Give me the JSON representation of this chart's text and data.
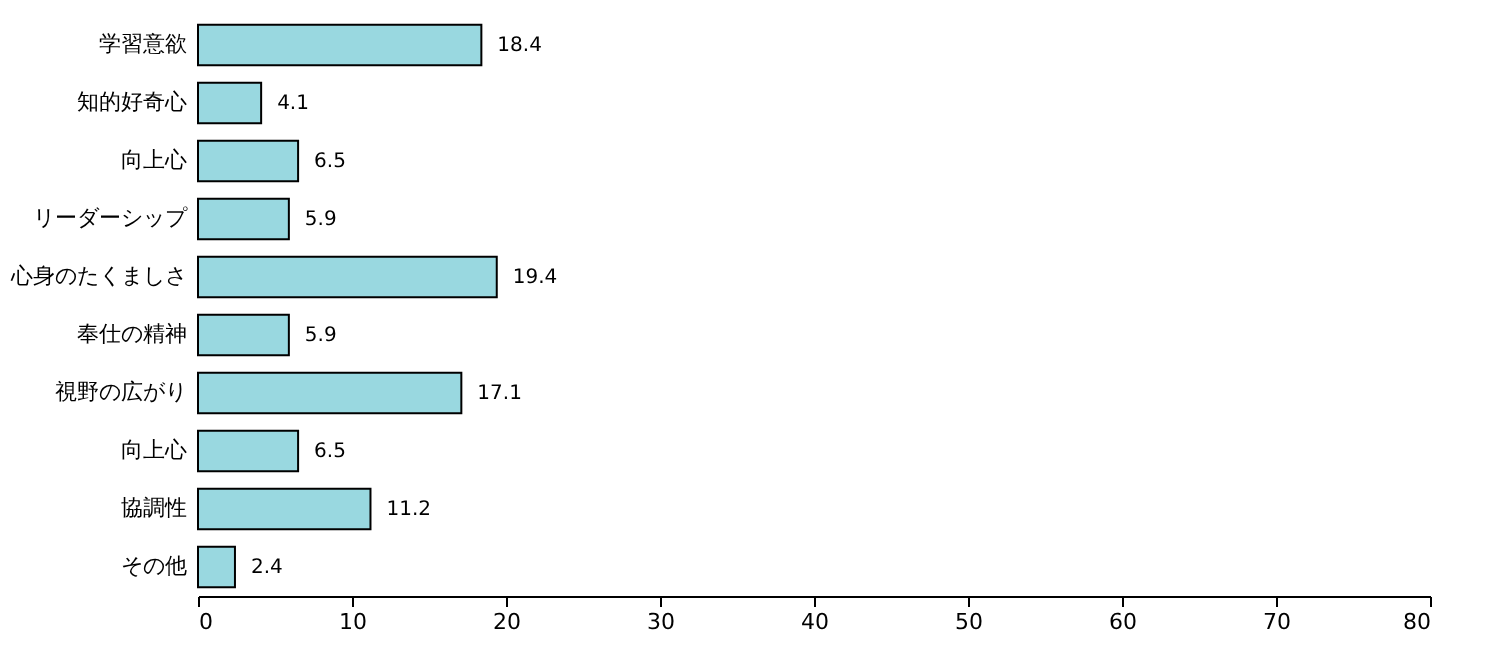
{
  "chart_data": {
    "type": "bar",
    "orientation": "horizontal",
    "categories": [
      "学習意欲",
      "知的好奇心",
      "向上心",
      "リーダーシップ",
      "心身のたくましさ",
      "奉仕の精神",
      "視野の広がり",
      "向上心",
      "協調性",
      "その他"
    ],
    "values": [
      18.4,
      4.1,
      6.5,
      5.9,
      19.4,
      5.9,
      17.1,
      6.5,
      11.2,
      2.4
    ],
    "color": "#99d8e0",
    "xlim": [
      0,
      80
    ],
    "xticks": [
      0,
      10,
      20,
      30,
      40,
      50,
      60,
      70,
      80
    ],
    "grid": false,
    "data_labels": true
  }
}
